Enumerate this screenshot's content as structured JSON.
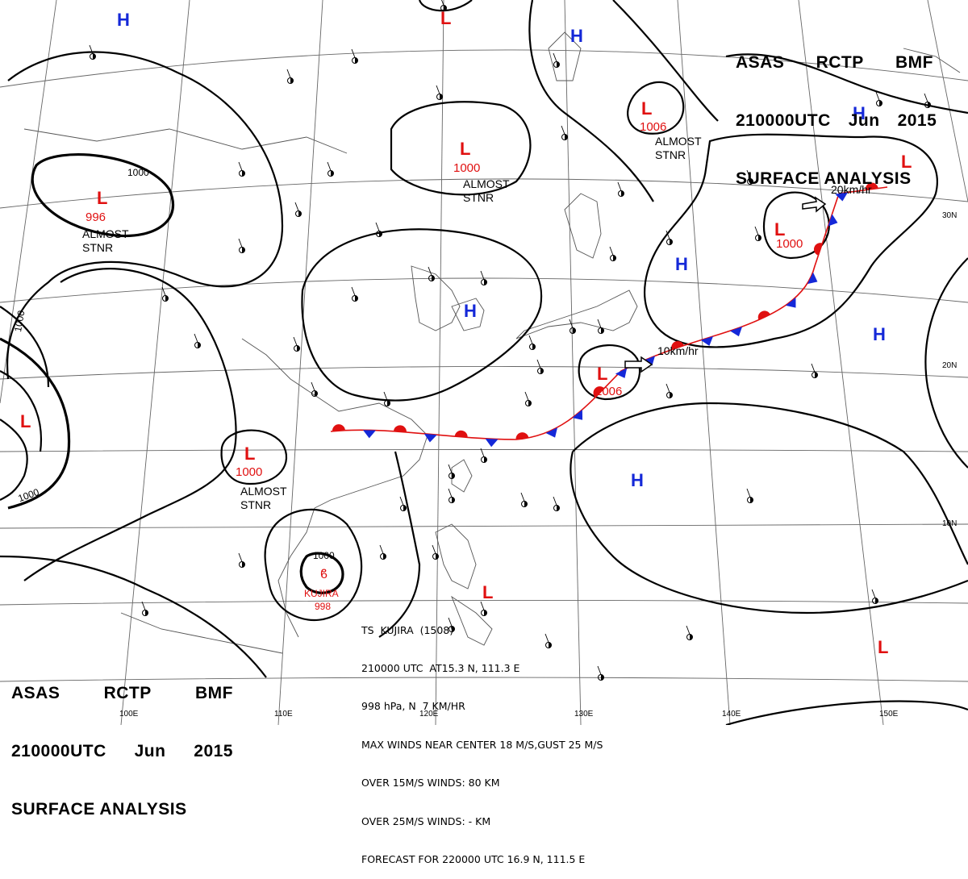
{
  "header": {
    "line1": [
      "ASAS",
      "RCTP",
      "BMF"
    ],
    "line2": [
      "210000UTC",
      "Jun",
      "2015"
    ],
    "line3": "SURFACE ANALYSIS"
  },
  "typhoon_info": {
    "line1": "TS  KUJIRA  (1508)",
    "line2": "210000 UTC  AT15.3 N, 111.3 E",
    "line3": "998 hPa, N  7 KM/HR",
    "line4": "MAX WINDS NEAR CENTER 18 M/S,GUST 25 M/S",
    "line5": "OVER 15M/S WINDS: 80 KM",
    "line6": "OVER 25M/S WINDS: - KM",
    "line7": "FORECAST FOR 220000 UTC 16.9 N, 111.5 E"
  },
  "pressure_systems": [
    {
      "type": "L",
      "value": "996",
      "label": "ALMOST\nSTNR"
    },
    {
      "type": "L",
      "value": "1000",
      "label": "ALMOST\nSTNR"
    },
    {
      "type": "L",
      "value": "1000",
      "label": "ALMOST\nSTNR"
    },
    {
      "type": "L",
      "value": "1006",
      "label": "ALMOST\nSTNR"
    },
    {
      "type": "L",
      "value": "1006",
      "label": ""
    },
    {
      "type": "L",
      "value": "1000",
      "label": ""
    },
    {
      "type": "L",
      "value": "",
      "label": ""
    },
    {
      "type": "L",
      "value": "",
      "label": ""
    },
    {
      "type": "L",
      "value": "",
      "label": ""
    },
    {
      "type": "L",
      "value": "",
      "label": ""
    },
    {
      "type": "L",
      "value": "",
      "label": ""
    },
    {
      "type": "H",
      "value": "",
      "label": ""
    },
    {
      "type": "H",
      "value": "",
      "label": ""
    },
    {
      "type": "H",
      "value": "",
      "label": ""
    },
    {
      "type": "H",
      "value": "",
      "label": ""
    },
    {
      "type": "H",
      "value": "",
      "label": ""
    },
    {
      "type": "H",
      "value": "",
      "label": ""
    },
    {
      "type": "H",
      "value": "",
      "label": ""
    }
  ],
  "storm": {
    "name": "KUJIRA",
    "pressure": "998",
    "isobar": "1000"
  },
  "isobar_labels": [
    "1000",
    "1000",
    "1000",
    "1000"
  ],
  "front_motions": [
    "10km/hr",
    "20km/hr"
  ],
  "grid_labels": {
    "lat": [
      "30N",
      "20N",
      "10N"
    ],
    "lon": [
      "100E",
      "110E",
      "120E",
      "130E",
      "140E",
      "150E"
    ]
  },
  "colors": {
    "high": "#1428d8",
    "low": "#e01010",
    "warm_front": "#e01010",
    "cold_front": "#1428d8"
  }
}
